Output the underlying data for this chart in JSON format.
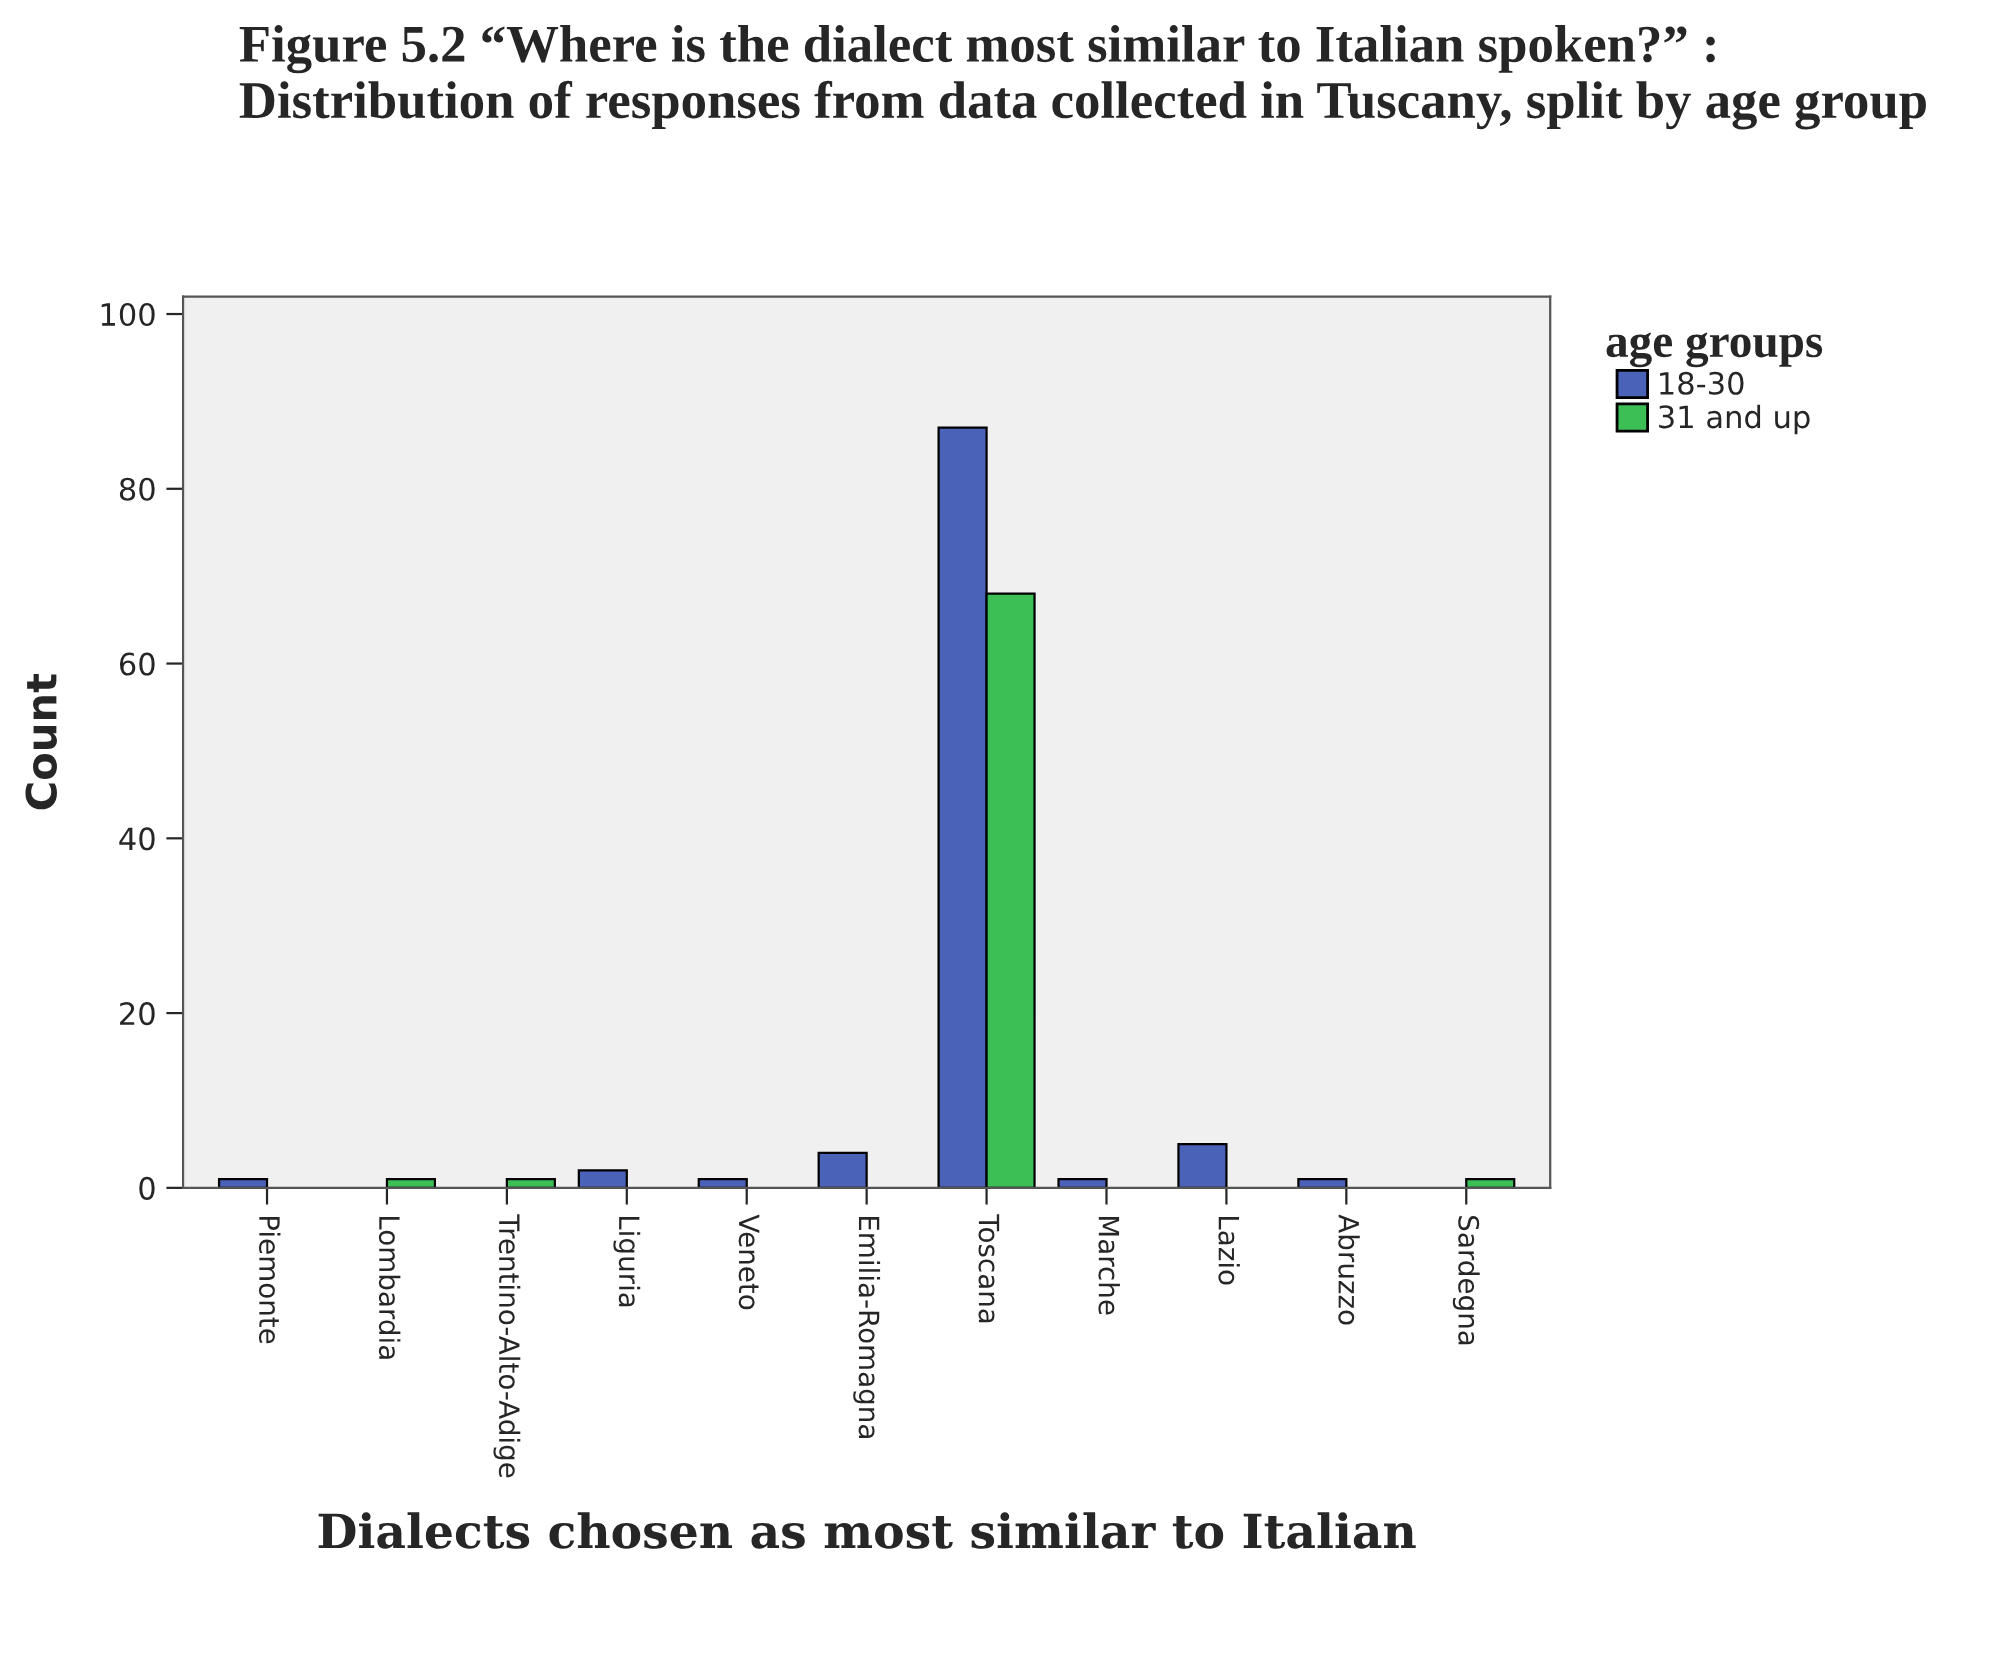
{
  "chart_data": {
    "type": "bar",
    "title": "Figure 5.2 “Where is the dialect most similar to Italian spoken?” : Distribution of responses from data collected in Tuscany, split by age group",
    "categories": [
      "Piemonte",
      "Lombardia",
      "Trentino-Alto-Adige",
      "Liguria",
      "Veneto",
      "Emilia-Romagna",
      "Toscana",
      "Marche",
      "Lazio",
      "Abruzzo",
      "Sardegna"
    ],
    "series": [
      {
        "name": "18-30",
        "color": "#4a62b8",
        "values": [
          1,
          null,
          null,
          2,
          1,
          4,
          87,
          1,
          5,
          1,
          null
        ]
      },
      {
        "name": "31 and up",
        "color": "#3cbf55",
        "values": [
          null,
          1,
          1,
          null,
          null,
          null,
          68,
          null,
          null,
          null,
          1
        ]
      }
    ],
    "xlabel": "Dialects chosen as most similar to Italian",
    "ylabel": "Count",
    "legend_title": "age groups",
    "ylim": [
      0,
      102
    ],
    "yticks": [
      0,
      20,
      40,
      60,
      80,
      100
    ],
    "grid": false,
    "legend": "top right"
  }
}
